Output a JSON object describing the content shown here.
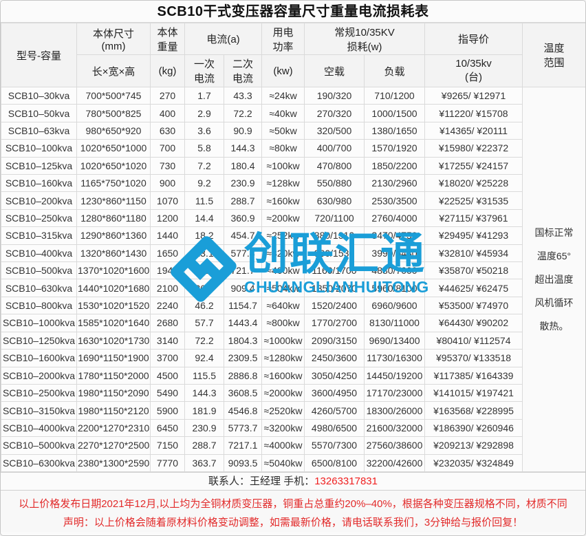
{
  "title": "SCB10干式变压器容量尺寸重量电流损耗表",
  "header": {
    "model": "型号-容量",
    "size": "本体尺寸\n(mm)",
    "size_sub": "长×宽×高",
    "weight": "本体\n重量",
    "weight_sub": "(kg)",
    "current": "电流(a)",
    "current_primary": "一次\n电流",
    "current_secondary": "二次\n电流",
    "power": "用电\n功率",
    "power_sub": "(kw)",
    "loss": "常规10/35KV\n损耗(w)",
    "loss_noload": "空载",
    "loss_load": "负载",
    "price": "指导价",
    "price_sub": "10/35kv\n(台)",
    "temperature": "温度\n范围"
  },
  "rows": [
    {
      "model": "SCB10–30kva",
      "size": "700*500*745",
      "weight": "270",
      "primary_current": "1.7",
      "secondary_current": "43.3",
      "power": "≈24kw",
      "no_load_loss": "190/320",
      "load_loss": "710/1200",
      "price": "¥9265/ ¥12971"
    },
    {
      "model": "SCB10–50kva",
      "size": "780*500*825",
      "weight": "400",
      "primary_current": "2.9",
      "secondary_current": "72.2",
      "power": "≈40kw",
      "no_load_loss": "270/320",
      "load_loss": "1000/1500",
      "price": "¥11220/ ¥15708"
    },
    {
      "model": "SCB10–63kva",
      "size": "980*650*920",
      "weight": "630",
      "primary_current": "3.6",
      "secondary_current": "90.9",
      "power": "≈50kw",
      "no_load_loss": "320/500",
      "load_loss": "1380/1650",
      "price": "¥14365/ ¥20111"
    },
    {
      "model": "SCB10–100kva",
      "size": "1020*650*1000",
      "weight": "700",
      "primary_current": "5.8",
      "secondary_current": "144.3",
      "power": "≈80kw",
      "no_load_loss": "400/700",
      "load_loss": "1570/1920",
      "price": "¥15980/ ¥22372"
    },
    {
      "model": "SCB10–125kva",
      "size": "1020*650*1020",
      "weight": "730",
      "primary_current": "7.2",
      "secondary_current": "180.4",
      "power": "≈100kw",
      "no_load_loss": "470/800",
      "load_loss": "1850/2200",
      "price": "¥17255/ ¥24157"
    },
    {
      "model": "SCB10–160kva",
      "size": "1165*750*1020",
      "weight": "900",
      "primary_current": "9.2",
      "secondary_current": "230.9",
      "power": "≈128kw",
      "no_load_loss": "550/880",
      "load_loss": "2130/2960",
      "price": "¥18020/ ¥25228"
    },
    {
      "model": "SCB10–200kva",
      "size": "1230*860*1150",
      "weight": "1070",
      "primary_current": "11.5",
      "secondary_current": "288.7",
      "power": "≈160kw",
      "no_load_loss": "630/980",
      "load_loss": "2530/3500",
      "price": "¥22525/ ¥31535"
    },
    {
      "model": "SCB10–250kva",
      "size": "1280*860*1180",
      "weight": "1200",
      "primary_current": "14.4",
      "secondary_current": "360.9",
      "power": "≈200kw",
      "no_load_loss": "720/1100",
      "load_loss": "2760/4000",
      "price": "¥27115/ ¥37961"
    },
    {
      "model": "SCB10–315kva",
      "size": "1290*860*1360",
      "weight": "1440",
      "primary_current": "18.2",
      "secondary_current": "454.7",
      "power": "≈252kw",
      "no_load_loss": "880/1310",
      "load_loss": "3470/4750",
      "price": "¥29495/ ¥41293"
    },
    {
      "model": "SCB10–400kva",
      "size": "1320*860*1430",
      "weight": "1650",
      "primary_current": "23.1",
      "secondary_current": "577.4",
      "power": "≈320kw",
      "no_load_loss": "990/1530",
      "load_loss": "3990/5430",
      "price": "¥32810/ ¥45934"
    },
    {
      "model": "SCB10–500kva",
      "size": "1370*1020*1600",
      "weight": "1940",
      "primary_current": "28.9",
      "secondary_current": "721.7",
      "power": "≈400kw",
      "no_load_loss": "1160/1700",
      "load_loss": "4880/7000",
      "price": "¥35870/ ¥50218"
    },
    {
      "model": "SCB10–630kva",
      "size": "1440*1020*1680",
      "weight": "2100",
      "primary_current": "36.4",
      "secondary_current": "909.4",
      "power": "≈504kw",
      "no_load_loss": "1350/2070",
      "load_loss": "5960/8100",
      "price": "¥44625/ ¥62475"
    },
    {
      "model": "SCB10–800kva",
      "size": "1530*1020*1520",
      "weight": "2240",
      "primary_current": "46.2",
      "secondary_current": "1154.7",
      "power": "≈640kw",
      "no_load_loss": "1520/2400",
      "load_loss": "6960/9600",
      "price": "¥53500/ ¥74970"
    },
    {
      "model": "SCB10–1000kva",
      "size": "1585*1020*1640",
      "weight": "2680",
      "primary_current": "57.7",
      "secondary_current": "1443.4",
      "power": "≈800kw",
      "no_load_loss": "1770/2700",
      "load_loss": "8130/11000",
      "price": "¥64430/ ¥90202"
    },
    {
      "model": "SCB10–1250kva",
      "size": "1630*1020*1730",
      "weight": "3140",
      "primary_current": "72.2",
      "secondary_current": "1804.3",
      "power": "≈1000kw",
      "no_load_loss": "2090/3150",
      "load_loss": "9690/13400",
      "price": "¥80410/ ¥112574"
    },
    {
      "model": "SCB10–1600kva",
      "size": "1690*1150*1900",
      "weight": "3700",
      "primary_current": "92.4",
      "secondary_current": "2309.5",
      "power": "≈1280kw",
      "no_load_loss": "2450/3600",
      "load_loss": "11730/16300",
      "price": "¥95370/ ¥133518"
    },
    {
      "model": "SCB10–2000kva",
      "size": "1780*1150*2000",
      "weight": "4500",
      "primary_current": "115.5",
      "secondary_current": "2886.8",
      "power": "≈1600kw",
      "no_load_loss": "3050/4250",
      "load_loss": "14450/19200",
      "price": "¥117385/ ¥164339"
    },
    {
      "model": "SCB10–2500kva",
      "size": "1980*1150*2090",
      "weight": "5490",
      "primary_current": "144.3",
      "secondary_current": "3608.5",
      "power": "≈2000kw",
      "no_load_loss": "3600/4950",
      "load_loss": "17170/23000",
      "price": "¥141015/ ¥197421"
    },
    {
      "model": "SCB10–3150kva",
      "size": "1980*1150*2120",
      "weight": "5900",
      "primary_current": "181.9",
      "secondary_current": "4546.8",
      "power": "≈2520kw",
      "no_load_loss": "4260/5700",
      "load_loss": "18300/26000",
      "price": "¥163568/ ¥228995"
    },
    {
      "model": "SCB10–4000kva",
      "size": "2200*1270*2310",
      "weight": "6450",
      "primary_current": "230.9",
      "secondary_current": "5773.7",
      "power": "≈3200kw",
      "no_load_loss": "4980/6500",
      "load_loss": "21600/32000",
      "price": "¥186390/ ¥260946"
    },
    {
      "model": "SCB10–5000kva",
      "size": "2270*1270*2500",
      "weight": "7150",
      "primary_current": "288.7",
      "secondary_current": "7217.1",
      "power": "≈4000kw",
      "no_load_loss": "5570/7300",
      "load_loss": "27560/38600",
      "price": "¥209213/ ¥292898"
    },
    {
      "model": "SCB10–6300kva",
      "size": "2380*1300*2590",
      "weight": "7770",
      "primary_current": "363.7",
      "secondary_current": "9093.5",
      "power": "≈5040kw",
      "no_load_loss": "6500/8100",
      "load_loss": "32200/42600",
      "price": "¥232035/ ¥324849"
    }
  ],
  "temperature_note": "国标正常\n温度65°\n超出温度\n风机循环\n散热。",
  "contact": {
    "label": "联系人：王经理  手机：",
    "phone": "13263317831"
  },
  "notes": [
    "以上价格发布日期2021年12月,以上均为全铜材质变压器，铜重占总重约20%–40%，根据各种变压器规格不同，材质不同",
    "声明：以上价格会随着原材料价格变动调整，如需最新价格，请电话联系我们，3分钟给与报价回复！"
  ],
  "watermark": {
    "cn": "创联汇通",
    "en": "CHUANGLIANHUITONG",
    "color": "#1a9ed8"
  },
  "colors": {
    "model_red": "#e03a3a",
    "note_red": "#e22a2a",
    "phone_red": "#f01f1f",
    "watermark_blue": "#1a9ed8",
    "border_gray": "#dadada",
    "header_bg": "#f3f3f3"
  }
}
